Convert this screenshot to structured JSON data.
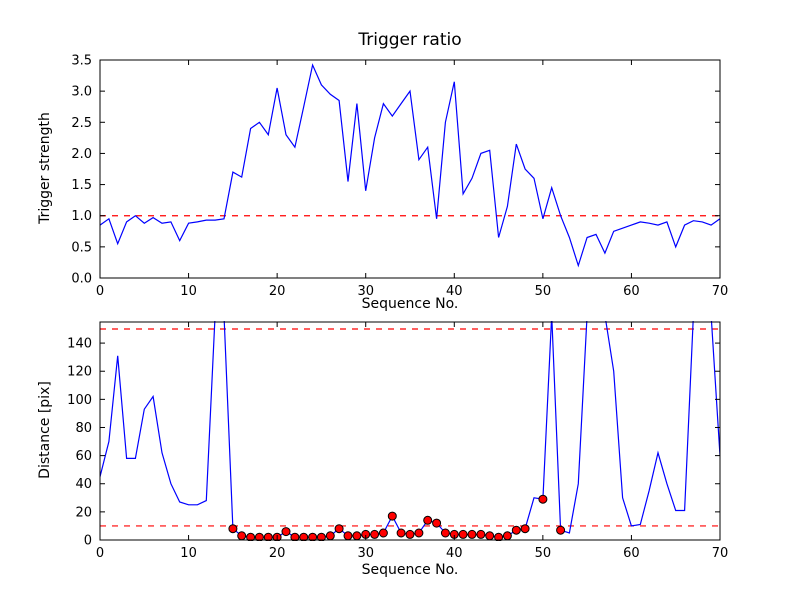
{
  "figure": {
    "background": "#ffffff",
    "frame_color": "#000000",
    "text_color": "#000000",
    "line_color": "#0000ff",
    "threshold_color": "#ff0000",
    "marker_color": "#ff0000",
    "marker_edge_color": "#000000"
  },
  "chart_data": [
    {
      "type": "line",
      "title": "Trigger ratio",
      "xlabel": "Sequence No.",
      "ylabel": "Trigger strength",
      "xlim": [
        0,
        70
      ],
      "ylim": [
        0,
        3.5
      ],
      "grid": false,
      "legend": null,
      "xticks": [
        0,
        10,
        20,
        30,
        40,
        50,
        60,
        70
      ],
      "xtick_labels": [
        "0",
        "10",
        "20",
        "30",
        "40",
        "50",
        "60",
        "70"
      ],
      "yticks": [
        0,
        0.5,
        1,
        1.5,
        2,
        2.5,
        3,
        3.5
      ],
      "ytick_labels": [
        "0.0",
        "0.5",
        "1.0",
        "1.5",
        "2.0",
        "2.5",
        "3.0",
        "3.5"
      ],
      "hlines": [
        {
          "y": 1.0,
          "color": "#ff0000",
          "style": "dashed"
        }
      ],
      "series": [
        {
          "name": "trigger-strength",
          "kind": "line",
          "color": "#0000ff",
          "x": [
            0,
            1,
            2,
            3,
            4,
            5,
            6,
            7,
            8,
            9,
            10,
            11,
            12,
            13,
            14,
            15,
            16,
            17,
            18,
            19,
            20,
            21,
            22,
            23,
            24,
            25,
            26,
            27,
            28,
            29,
            30,
            31,
            32,
            33,
            34,
            35,
            36,
            37,
            38,
            39,
            40,
            41,
            42,
            43,
            44,
            45,
            46,
            47,
            48,
            49,
            50,
            51,
            52,
            53,
            54,
            55,
            56,
            57,
            58,
            59,
            60,
            61,
            62,
            63,
            64,
            65,
            66,
            67,
            68,
            69,
            70
          ],
          "y": [
            0.85,
            0.95,
            0.55,
            0.9,
            1.0,
            0.88,
            0.97,
            0.88,
            0.9,
            0.6,
            0.88,
            0.9,
            0.93,
            0.93,
            0.95,
            1.7,
            1.62,
            2.4,
            2.5,
            2.3,
            3.05,
            2.3,
            2.1,
            2.75,
            3.42,
            3.1,
            2.95,
            2.85,
            1.55,
            2.8,
            1.4,
            2.25,
            2.8,
            2.6,
            2.8,
            3.0,
            1.9,
            2.1,
            0.95,
            2.5,
            3.15,
            1.35,
            1.6,
            2.0,
            2.05,
            0.65,
            1.15,
            2.15,
            1.75,
            1.6,
            0.95,
            1.45,
            1.0,
            0.65,
            0.2,
            0.65,
            0.7,
            0.4,
            0.75,
            0.8,
            0.85,
            0.9,
            0.88,
            0.85,
            0.9,
            0.5,
            0.85,
            0.92,
            0.9,
            0.85,
            0.95
          ]
        }
      ]
    },
    {
      "type": "line",
      "title": "",
      "xlabel": "Sequence No.",
      "ylabel": "Distance [pix]",
      "xlim": [
        0,
        70
      ],
      "ylim": [
        0,
        155
      ],
      "grid": false,
      "legend": null,
      "xticks": [
        0,
        10,
        20,
        30,
        40,
        50,
        60,
        70
      ],
      "xtick_labels": [
        "0",
        "10",
        "20",
        "30",
        "40",
        "50",
        "60",
        "70"
      ],
      "yticks": [
        0,
        20,
        40,
        60,
        80,
        100,
        120,
        140
      ],
      "ytick_labels": [
        "0",
        "20",
        "40",
        "60",
        "80",
        "100",
        "120",
        "140"
      ],
      "hlines": [
        {
          "y": 150,
          "color": "#ff0000",
          "style": "dashed"
        },
        {
          "y": 10,
          "color": "#ff0000",
          "style": "dashed"
        }
      ],
      "series": [
        {
          "name": "distance",
          "kind": "line",
          "color": "#0000ff",
          "x": [
            0,
            1,
            2,
            3,
            4,
            5,
            6,
            7,
            8,
            9,
            10,
            11,
            12,
            13,
            14,
            15,
            16,
            17,
            18,
            19,
            20,
            21,
            22,
            23,
            24,
            25,
            26,
            27,
            28,
            29,
            30,
            31,
            32,
            33,
            34,
            35,
            36,
            37,
            38,
            39,
            40,
            41,
            42,
            43,
            44,
            45,
            46,
            47,
            48,
            49,
            50,
            51,
            52,
            53,
            54,
            55,
            56,
            57,
            58,
            59,
            60,
            61,
            62,
            63,
            64,
            65,
            66,
            67,
            68,
            69,
            70
          ],
          "y": [
            45,
            70,
            131,
            58,
            58,
            93,
            102,
            62,
            40,
            27,
            25,
            25,
            28,
            160,
            160,
            8,
            3,
            2,
            2,
            2,
            2,
            6,
            2,
            2,
            2,
            2,
            3,
            8,
            3,
            3,
            4,
            4,
            5,
            17,
            5,
            4,
            5,
            14,
            12,
            5,
            4,
            4,
            4,
            4,
            3,
            2,
            3,
            7,
            8,
            30,
            29,
            160,
            7,
            5,
            40,
            160,
            160,
            160,
            120,
            30,
            10,
            11,
            35,
            62,
            40,
            21,
            21,
            160,
            160,
            160,
            60
          ]
        },
        {
          "name": "trigger-points",
          "kind": "scatter",
          "color": "#ff0000",
          "edge_color": "#000000",
          "x": [
            15,
            16,
            17,
            18,
            19,
            20,
            21,
            22,
            23,
            24,
            25,
            26,
            27,
            28,
            29,
            30,
            31,
            32,
            33,
            34,
            35,
            36,
            37,
            38,
            39,
            40,
            41,
            42,
            43,
            44,
            45,
            46,
            47,
            48,
            50,
            52
          ],
          "y": [
            8,
            3,
            2,
            2,
            2,
            2,
            6,
            2,
            2,
            2,
            2,
            3,
            8,
            3,
            3,
            4,
            4,
            5,
            17,
            5,
            4,
            5,
            14,
            12,
            5,
            4,
            4,
            4,
            4,
            3,
            2,
            3,
            7,
            8,
            29,
            7
          ]
        }
      ]
    }
  ]
}
